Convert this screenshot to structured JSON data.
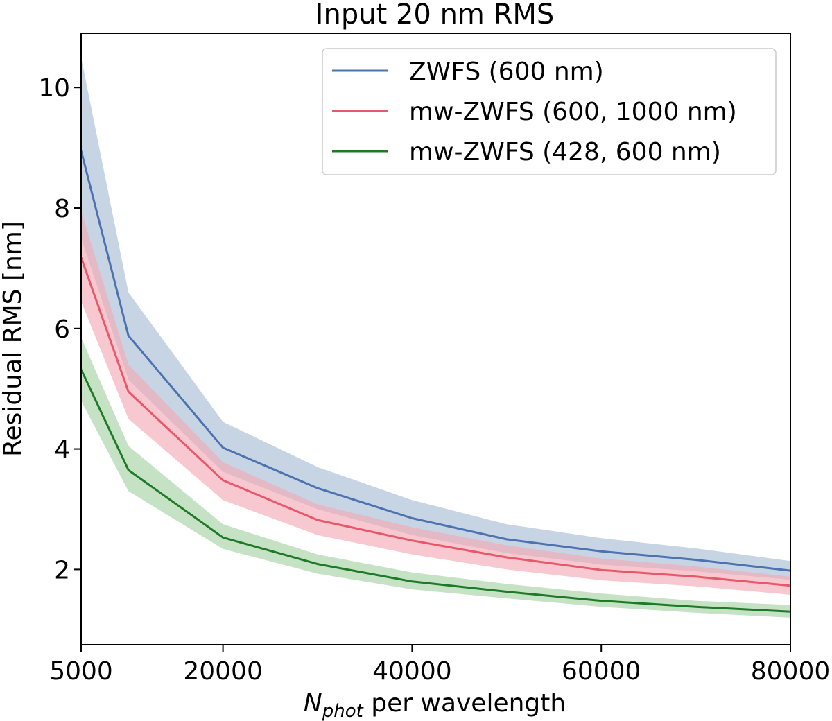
{
  "chart_data": {
    "type": "line",
    "title": "Input 20 nm RMS",
    "xlabel_main": "N",
    "xlabel_sub": "phot",
    "xlabel_rest": " per wavelength",
    "ylabel": "Residual RMS [nm]",
    "xlim": [
      5000,
      80000
    ],
    "ylim": [
      0.75,
      10.9
    ],
    "x_ticks": [
      5000,
      20000,
      40000,
      60000,
      80000
    ],
    "y_ticks": [
      2,
      4,
      6,
      8,
      10
    ],
    "x": [
      5000,
      10000,
      20000,
      30000,
      40000,
      50000,
      60000,
      70000,
      80000
    ],
    "series": [
      {
        "name": "ZWFS (600 nm)",
        "color": "#4c72b0",
        "band_color": "#a9bdd6",
        "values": [
          8.95,
          5.88,
          4.02,
          3.35,
          2.85,
          2.5,
          2.3,
          2.16,
          1.98
        ],
        "lower": [
          7.5,
          5.15,
          3.62,
          3.0,
          2.57,
          2.27,
          2.08,
          1.97,
          1.83
        ],
        "upper": [
          10.5,
          6.6,
          4.45,
          3.7,
          3.15,
          2.75,
          2.52,
          2.35,
          2.14
        ]
      },
      {
        "name": "mw-ZWFS (600, 1000 nm)",
        "color": "#e8576a",
        "band_color": "#f3aab5",
        "values": [
          7.18,
          4.95,
          3.48,
          2.82,
          2.48,
          2.2,
          1.99,
          1.88,
          1.73
        ],
        "lower": [
          6.45,
          4.5,
          3.15,
          2.57,
          2.25,
          2.0,
          1.82,
          1.72,
          1.58
        ],
        "upper": [
          7.95,
          5.4,
          3.78,
          3.08,
          2.7,
          2.4,
          2.18,
          2.05,
          1.88
        ]
      },
      {
        "name": "mw-ZWFS (428, 600 nm)",
        "color": "#1f7a27",
        "band_color": "#a8d3a6",
        "values": [
          5.32,
          3.65,
          2.53,
          2.09,
          1.8,
          1.63,
          1.48,
          1.38,
          1.3
        ],
        "lower": [
          4.8,
          3.3,
          2.34,
          1.93,
          1.67,
          1.52,
          1.38,
          1.28,
          1.2
        ],
        "upper": [
          5.85,
          4.05,
          2.75,
          2.25,
          1.95,
          1.76,
          1.6,
          1.48,
          1.41
        ]
      }
    ],
    "legend_position": "top-right",
    "grid": false
  }
}
